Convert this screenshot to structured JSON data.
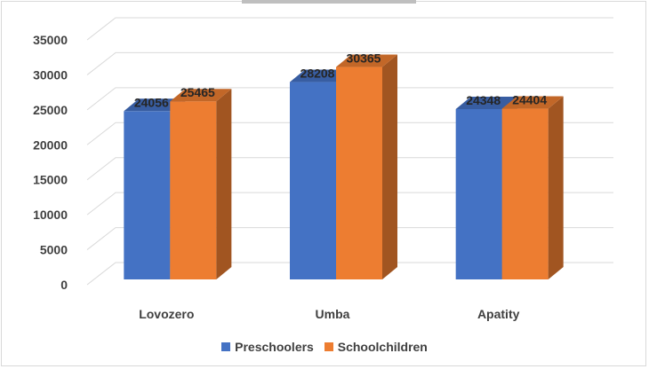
{
  "chart_data": {
    "type": "bar",
    "categories": [
      "Lovozero",
      "Umba",
      "Apatity"
    ],
    "series": [
      {
        "name": "Preschoolers",
        "values": [
          24056,
          28208,
          24348
        ],
        "color": "#4472c4"
      },
      {
        "name": "Schoolchildren",
        "values": [
          25465,
          30365,
          24404
        ],
        "color": "#ed7d31"
      }
    ],
    "ylim": [
      0,
      35000
    ],
    "yticks": [
      0,
      5000,
      10000,
      15000,
      20000,
      25000,
      30000,
      35000
    ],
    "grid": true,
    "legend": "bottom",
    "data_labels": true,
    "style": "3d-column"
  }
}
